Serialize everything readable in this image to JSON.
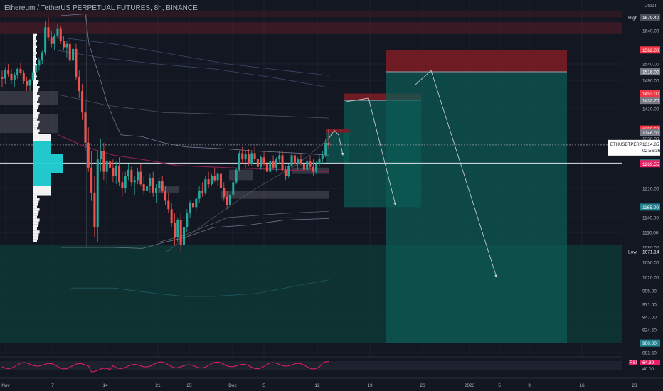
{
  "header": {
    "title": "Ethereum / TetherUS PERPETUAL FUTURES, 8h, BINANCE",
    "currency": "USDT"
  },
  "colors": {
    "background": "#131722",
    "up": "#26a69a",
    "down": "#ef5350",
    "profit_zone": "#0b5c55",
    "loss_zone": "#7a1c25",
    "grid": "#1e222d",
    "axis_text": "#b2b5be",
    "vp_up": "#22d3d6",
    "vp_down": "#ffffff",
    "rsi_line": "#e91e63",
    "bands": "#6f7a92",
    "arrows": "#d1d4dc"
  },
  "icons": {
    "flag": "flag-icon"
  },
  "chart_data": {
    "type": "candlestick",
    "timeframe": "8h",
    "ylim": [
      870,
      1700
    ],
    "x_ticks": [
      "Nov",
      "7",
      "14",
      "21",
      "25",
      "Dec",
      "5",
      "12",
      "19",
      "26",
      "2023",
      "5",
      "9",
      "16",
      "23"
    ],
    "y_ticks": [
      "1640.00",
      "1540.00",
      "1490.00",
      "1410.00",
      "1330.00",
      "1210.00",
      "1140.00",
      "1110.00",
      "1080.00",
      "1050.00",
      "1020.00",
      "995.00",
      "971.00",
      "947.00",
      "924.50",
      "882.50"
    ],
    "price_labels": [
      {
        "text": "High",
        "value": "1679.40",
        "color": "#4a4e5a",
        "price": 1679.4
      },
      {
        "text": "",
        "value": "1582.00",
        "color": "#f23645",
        "price": 1582
      },
      {
        "text": "",
        "value": "1516.00",
        "color": "#787b86",
        "price": 1516
      },
      {
        "text": "",
        "value": "1453.00",
        "color": "#f23645",
        "price": 1453
      },
      {
        "text": "",
        "value": "1433.70",
        "color": "#787b86",
        "price": 1433.7
      },
      {
        "text": "",
        "value": "1355.50",
        "color": "#f23645",
        "price": 1355.5
      },
      {
        "text": "",
        "value": "1346.00",
        "color": "#787b86",
        "price": 1346
      },
      {
        "text": "",
        "value": "1271.11",
        "color": "#26a69a",
        "price": 1271.1
      },
      {
        "text": "",
        "value": "1269.55",
        "color": "#e91e63",
        "price": 1269.55
      },
      {
        "text": "",
        "value": "1165.00",
        "color": "#22838f",
        "price": 1165
      },
      {
        "text": "Low",
        "value": "1071.14",
        "color": "#131722",
        "price": 1071.14
      },
      {
        "text": "",
        "value": "900.00",
        "color": "#22838f",
        "price": 900
      }
    ],
    "last_price": {
      "symbol": "ETHUSDTPERP",
      "value": "1314.85",
      "countdown": "02:56:36",
      "price": 1314.85
    },
    "high": 1679.4,
    "low": 1071.14,
    "positions": [
      {
        "name": "short-1",
        "entry": 1433.7,
        "stop": 1453,
        "target": 1165
      },
      {
        "name": "short-2",
        "entry": 1516,
        "stop": 1582,
        "target": 900
      }
    ],
    "rsi": {
      "label": "RSI",
      "value": "64.89",
      "tick": "40.00"
    },
    "candles": [
      [
        1500,
        1520,
        1470,
        1495
      ],
      [
        1495,
        1530,
        1480,
        1520
      ],
      [
        1520,
        1540,
        1500,
        1510
      ],
      [
        1510,
        1525,
        1480,
        1490
      ],
      [
        1490,
        1515,
        1470,
        1505
      ],
      [
        1505,
        1530,
        1495,
        1525
      ],
      [
        1525,
        1545,
        1505,
        1512
      ],
      [
        1512,
        1520,
        1480,
        1488
      ],
      [
        1488,
        1500,
        1460,
        1475
      ],
      [
        1475,
        1495,
        1460,
        1490
      ],
      [
        1490,
        1520,
        1485,
        1515
      ],
      [
        1515,
        1540,
        1505,
        1535
      ],
      [
        1535,
        1560,
        1520,
        1550
      ],
      [
        1550,
        1580,
        1540,
        1575
      ],
      [
        1575,
        1670,
        1565,
        1650
      ],
      [
        1650,
        1679,
        1610,
        1620
      ],
      [
        1620,
        1640,
        1590,
        1600
      ],
      [
        1600,
        1630,
        1580,
        1625
      ],
      [
        1625,
        1660,
        1615,
        1645
      ],
      [
        1645,
        1655,
        1600,
        1610
      ],
      [
        1610,
        1625,
        1580,
        1590
      ],
      [
        1590,
        1610,
        1560,
        1600
      ],
      [
        1600,
        1620,
        1540,
        1550
      ],
      [
        1550,
        1600,
        1530,
        1585
      ],
      [
        1585,
        1600,
        1490,
        1500
      ],
      [
        1500,
        1520,
        1440,
        1460
      ],
      [
        1460,
        1480,
        1380,
        1400
      ],
      [
        1400,
        1430,
        1300,
        1320
      ],
      [
        1320,
        1360,
        1250,
        1260
      ],
      [
        1260,
        1300,
        1180,
        1200
      ],
      [
        1200,
        1240,
        1100,
        1120
      ],
      [
        1120,
        1300,
        1090,
        1280
      ],
      [
        1280,
        1330,
        1250,
        1300
      ],
      [
        1300,
        1320,
        1230,
        1250
      ],
      [
        1250,
        1290,
        1220,
        1275
      ],
      [
        1275,
        1310,
        1250,
        1260
      ],
      [
        1260,
        1280,
        1225,
        1240
      ],
      [
        1240,
        1275,
        1220,
        1265
      ],
      [
        1265,
        1285,
        1215,
        1225
      ],
      [
        1225,
        1250,
        1190,
        1210
      ],
      [
        1210,
        1250,
        1200,
        1240
      ],
      [
        1240,
        1270,
        1230,
        1255
      ],
      [
        1255,
        1265,
        1215,
        1225
      ],
      [
        1225,
        1240,
        1195,
        1230
      ],
      [
        1230,
        1260,
        1220,
        1250
      ],
      [
        1250,
        1270,
        1215,
        1220
      ],
      [
        1220,
        1240,
        1195,
        1205
      ],
      [
        1205,
        1225,
        1180,
        1215
      ],
      [
        1215,
        1245,
        1200,
        1235
      ],
      [
        1235,
        1250,
        1190,
        1200
      ],
      [
        1200,
        1220,
        1175,
        1210
      ],
      [
        1210,
        1235,
        1200,
        1228
      ],
      [
        1228,
        1240,
        1200,
        1205
      ],
      [
        1205,
        1215,
        1170,
        1180
      ],
      [
        1180,
        1200,
        1150,
        1160
      ],
      [
        1160,
        1175,
        1120,
        1130
      ],
      [
        1130,
        1150,
        1085,
        1100
      ],
      [
        1100,
        1140,
        1090,
        1135
      ],
      [
        1135,
        1150,
        1071,
        1085
      ],
      [
        1085,
        1130,
        1080,
        1120
      ],
      [
        1120,
        1160,
        1110,
        1150
      ],
      [
        1150,
        1180,
        1140,
        1175
      ],
      [
        1175,
        1195,
        1160,
        1165
      ],
      [
        1165,
        1190,
        1155,
        1185
      ],
      [
        1185,
        1215,
        1175,
        1205
      ],
      [
        1205,
        1225,
        1190,
        1200
      ],
      [
        1200,
        1240,
        1195,
        1232
      ],
      [
        1232,
        1250,
        1210,
        1220
      ],
      [
        1220,
        1245,
        1215,
        1240
      ],
      [
        1240,
        1260,
        1225,
        1230
      ],
      [
        1230,
        1250,
        1215,
        1245
      ],
      [
        1245,
        1255,
        1200,
        1210
      ],
      [
        1210,
        1225,
        1180,
        1190
      ],
      [
        1190,
        1205,
        1160,
        1170
      ],
      [
        1170,
        1200,
        1165,
        1195
      ],
      [
        1195,
        1230,
        1190,
        1225
      ],
      [
        1225,
        1260,
        1220,
        1255
      ],
      [
        1255,
        1300,
        1250,
        1295
      ],
      [
        1295,
        1310,
        1270,
        1280
      ],
      [
        1280,
        1300,
        1260,
        1292
      ],
      [
        1292,
        1305,
        1265,
        1270
      ],
      [
        1270,
        1300,
        1265,
        1295
      ],
      [
        1295,
        1310,
        1275,
        1282
      ],
      [
        1282,
        1295,
        1255,
        1262
      ],
      [
        1262,
        1290,
        1255,
        1285
      ],
      [
        1285,
        1300,
        1265,
        1270
      ],
      [
        1270,
        1285,
        1245,
        1250
      ],
      [
        1250,
        1280,
        1245,
        1275
      ],
      [
        1275,
        1290,
        1255,
        1260
      ],
      [
        1260,
        1285,
        1250,
        1280
      ],
      [
        1280,
        1300,
        1270,
        1290
      ],
      [
        1290,
        1300,
        1250,
        1255
      ],
      [
        1255,
        1265,
        1230,
        1240
      ],
      [
        1240,
        1270,
        1235,
        1265
      ],
      [
        1265,
        1295,
        1260,
        1290
      ],
      [
        1290,
        1300,
        1260,
        1268
      ],
      [
        1268,
        1285,
        1255,
        1280
      ],
      [
        1280,
        1295,
        1265,
        1270
      ],
      [
        1270,
        1285,
        1250,
        1255
      ],
      [
        1255,
        1280,
        1245,
        1275
      ],
      [
        1275,
        1290,
        1255,
        1262
      ],
      [
        1262,
        1280,
        1240,
        1250
      ],
      [
        1250,
        1275,
        1245,
        1270
      ],
      [
        1270,
        1290,
        1262,
        1282
      ],
      [
        1282,
        1300,
        1270,
        1290
      ],
      [
        1290,
        1330,
        1285,
        1320
      ],
      [
        1320,
        1356,
        1305,
        1315
      ]
    ]
  }
}
